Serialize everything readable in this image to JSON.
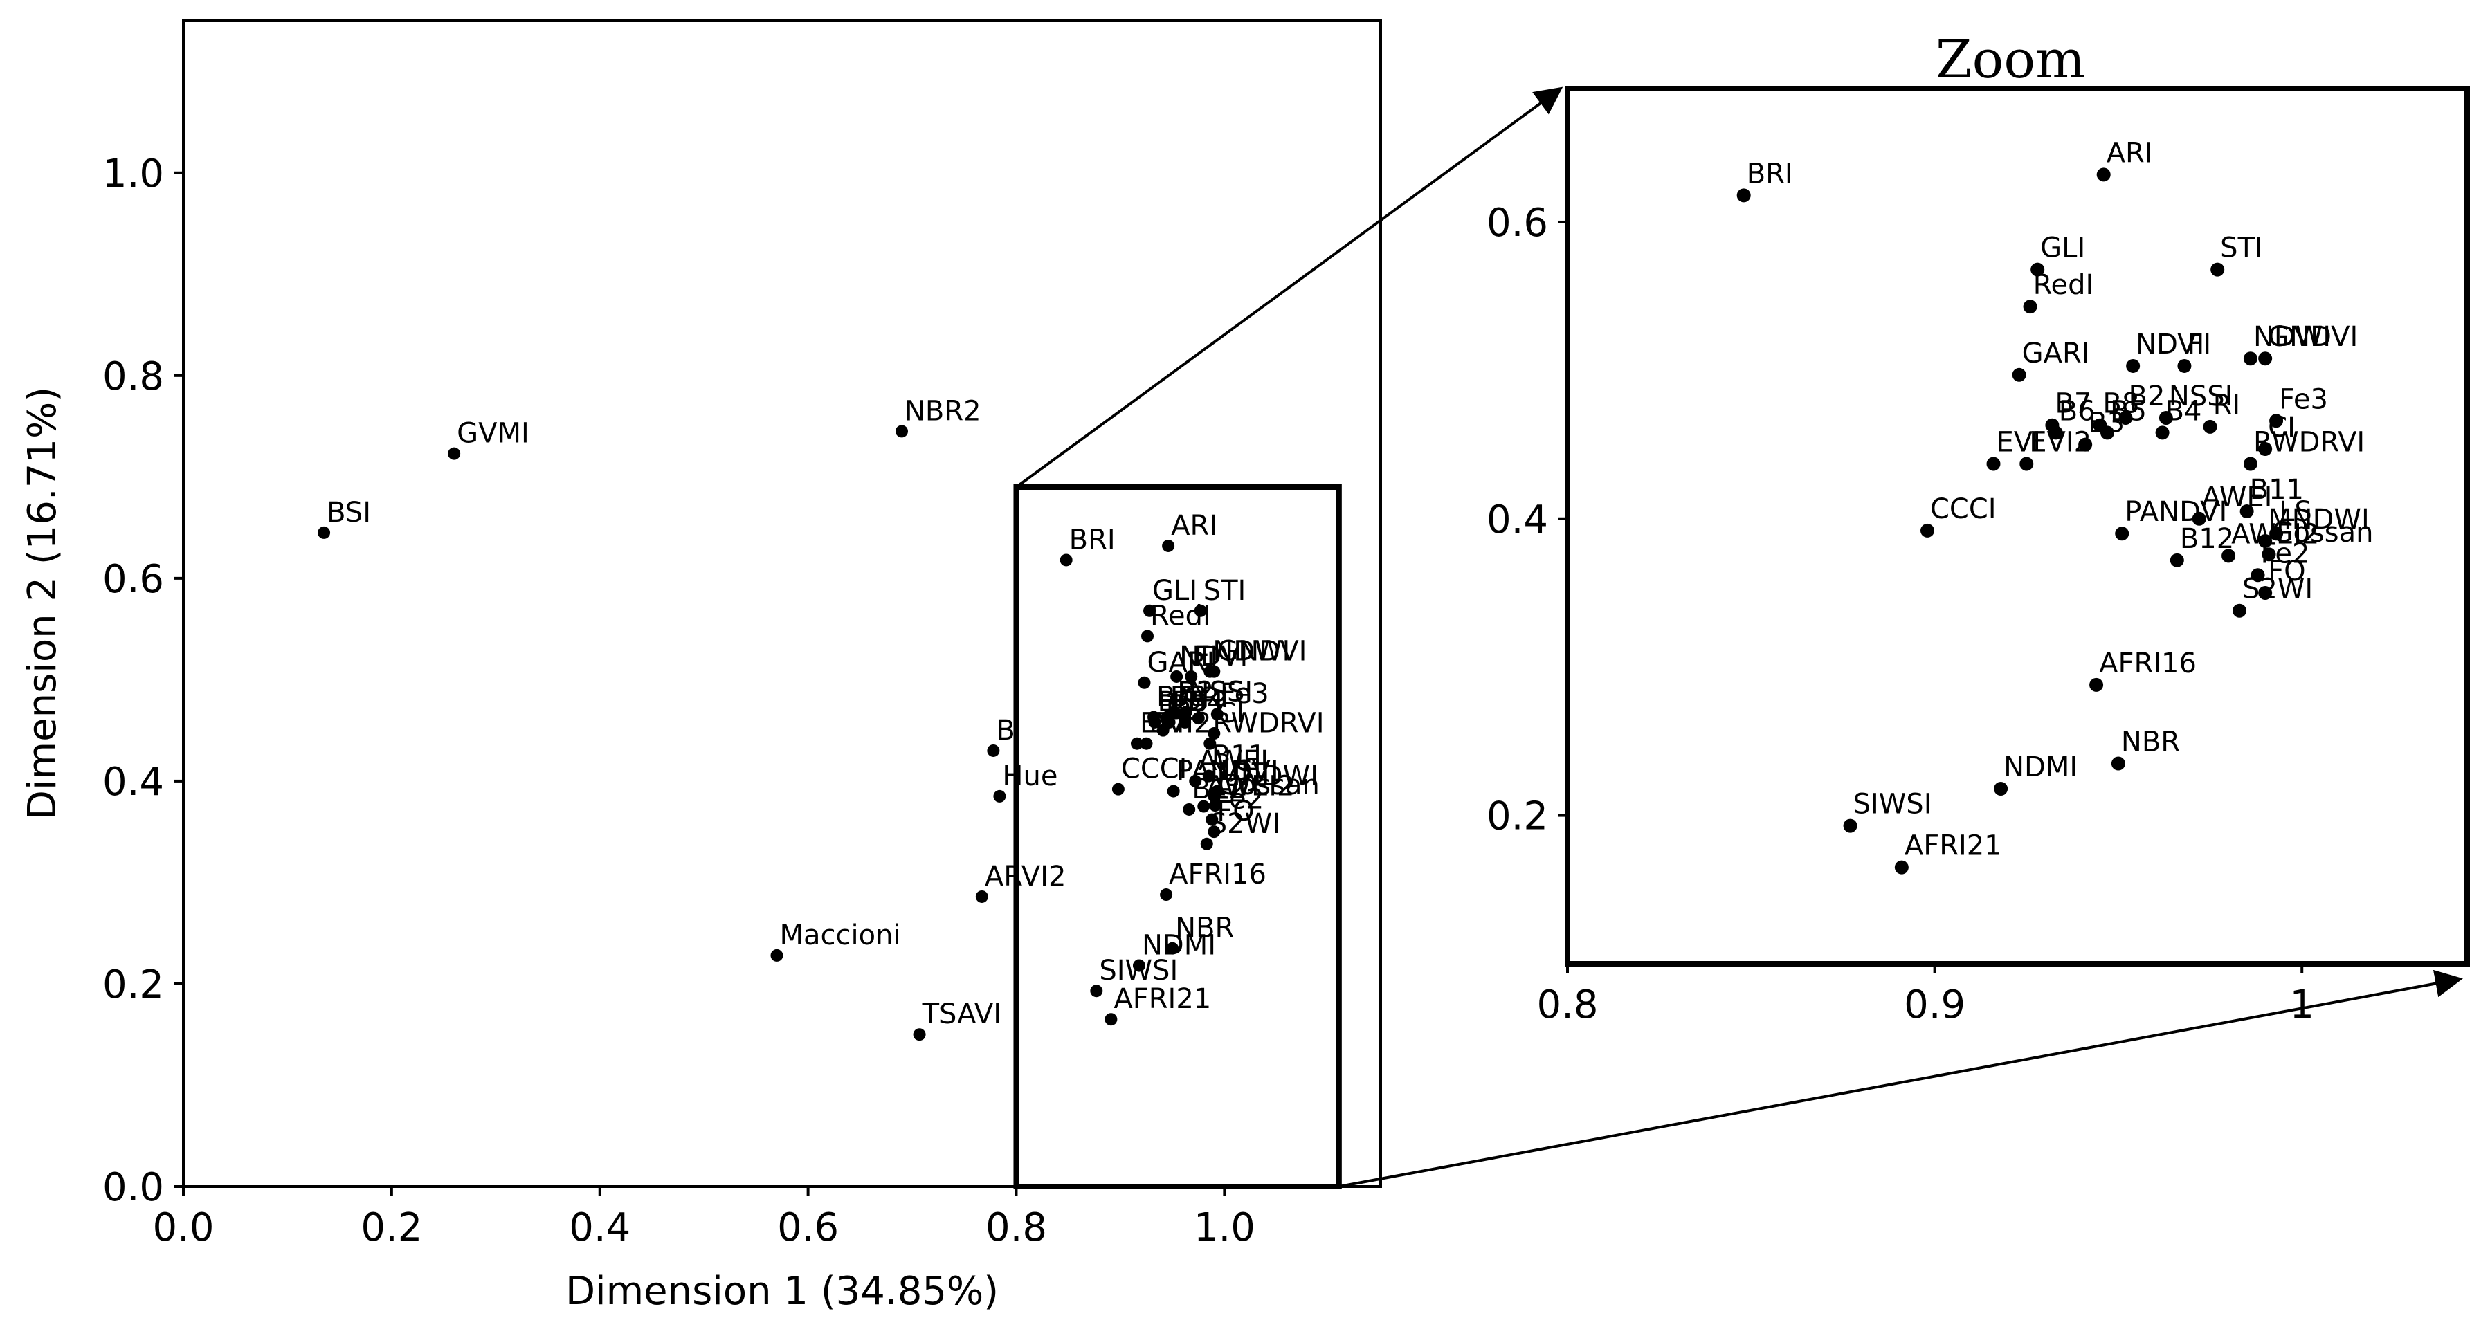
{
  "zoom_title": "Zoom",
  "chart_data": [
    {
      "type": "scatter",
      "title": "",
      "xlabel": "Dimension 1 (34.85%)",
      "ylabel": "Dimension 2 (16.71%)",
      "xlim": [
        0.0,
        1.15
      ],
      "ylim": [
        0.0,
        1.15
      ],
      "xticks": [
        0.0,
        0.2,
        0.4,
        0.6,
        0.8,
        1.0
      ],
      "yticks": [
        0.0,
        0.2,
        0.4,
        0.6,
        0.8,
        1.0
      ],
      "xtick_labels": [
        "0.0",
        "0.2",
        "0.4",
        "0.6",
        "0.8",
        "1.0"
      ],
      "ytick_labels": [
        "0.0",
        "0.2",
        "0.4",
        "0.6",
        "0.8",
        "1.0"
      ],
      "grid": false,
      "point_color": "#000000",
      "zoom_region": {
        "x": [
          0.8,
          1.11
        ],
        "y": [
          0.0,
          0.69
        ]
      },
      "points": [
        {
          "label": "BSI",
          "x": 0.135,
          "y": 0.645
        },
        {
          "label": "GVMI",
          "x": 0.26,
          "y": 0.723
        },
        {
          "label": "NBR2",
          "x": 0.69,
          "y": 0.745
        },
        {
          "label": "Maccioni",
          "x": 0.57,
          "y": 0.228
        },
        {
          "label": "TSAVI",
          "x": 0.707,
          "y": 0.15
        },
        {
          "label": "ARVI2",
          "x": 0.767,
          "y": 0.286
        },
        {
          "label": "B",
          "x": 0.778,
          "y": 0.43
        },
        {
          "label": "Hue",
          "x": 0.784,
          "y": 0.385
        },
        {
          "label": "BRI",
          "x": 0.848,
          "y": 0.618
        },
        {
          "label": "ARI",
          "x": 0.946,
          "y": 0.632
        },
        {
          "label": "GLI",
          "x": 0.928,
          "y": 0.568
        },
        {
          "label": "STI",
          "x": 0.977,
          "y": 0.568
        },
        {
          "label": "RedI",
          "x": 0.926,
          "y": 0.543
        },
        {
          "label": "GARI",
          "x": 0.923,
          "y": 0.497
        },
        {
          "label": "NDVI",
          "x": 0.954,
          "y": 0.503
        },
        {
          "label": "FI",
          "x": 0.968,
          "y": 0.503
        },
        {
          "label": "NDWI",
          "x": 0.986,
          "y": 0.508
        },
        {
          "label": "GNDVI",
          "x": 0.99,
          "y": 0.508
        },
        {
          "label": "B7",
          "x": 0.932,
          "y": 0.463
        },
        {
          "label": "B8",
          "x": 0.945,
          "y": 0.463
        },
        {
          "label": "B2",
          "x": 0.952,
          "y": 0.468
        },
        {
          "label": "NSSI",
          "x": 0.963,
          "y": 0.468
        },
        {
          "label": "B6",
          "x": 0.933,
          "y": 0.458
        },
        {
          "label": "B5",
          "x": 0.947,
          "y": 0.458
        },
        {
          "label": "B4",
          "x": 0.962,
          "y": 0.458
        },
        {
          "label": "RI",
          "x": 0.975,
          "y": 0.462
        },
        {
          "label": "Fe3",
          "x": 0.993,
          "y": 0.466
        },
        {
          "label": "B3",
          "x": 0.941,
          "y": 0.45
        },
        {
          "label": "CI",
          "x": 0.99,
          "y": 0.447
        },
        {
          "label": "EVI",
          "x": 0.916,
          "y": 0.437
        },
        {
          "label": "EVI2",
          "x": 0.925,
          "y": 0.437
        },
        {
          "label": "RWDRVI",
          "x": 0.986,
          "y": 0.437
        },
        {
          "label": "B11",
          "x": 0.985,
          "y": 0.405
        },
        {
          "label": "AWEI",
          "x": 0.972,
          "y": 0.4
        },
        {
          "label": "PANDVI",
          "x": 0.951,
          "y": 0.39
        },
        {
          "label": "CCCI",
          "x": 0.898,
          "y": 0.392
        },
        {
          "label": "B12",
          "x": 0.966,
          "y": 0.372
        },
        {
          "label": "AWEI2",
          "x": 0.98,
          "y": 0.375
        },
        {
          "label": "LS",
          "x": 0.993,
          "y": 0.39
        },
        {
          "label": "MNDWI",
          "x": 0.99,
          "y": 0.385
        },
        {
          "label": "Gossan",
          "x": 0.991,
          "y": 0.376
        },
        {
          "label": "Fe2",
          "x": 0.988,
          "y": 0.362
        },
        {
          "label": "FO",
          "x": 0.99,
          "y": 0.35
        },
        {
          "label": "S2WI",
          "x": 0.983,
          "y": 0.338
        },
        {
          "label": "AFRI16",
          "x": 0.944,
          "y": 0.288
        },
        {
          "label": "NBR",
          "x": 0.95,
          "y": 0.235
        },
        {
          "label": "NDMI",
          "x": 0.918,
          "y": 0.218
        },
        {
          "label": "SIWSI",
          "x": 0.877,
          "y": 0.193
        },
        {
          "label": "AFRI21",
          "x": 0.891,
          "y": 0.165
        }
      ]
    },
    {
      "type": "scatter",
      "title": "Zoom",
      "xlabel": "",
      "ylabel": "",
      "xlim": [
        0.8,
        1.045
      ],
      "ylim": [
        0.1,
        0.69
      ],
      "xticks": [
        0.8,
        0.9,
        1.0
      ],
      "yticks": [
        0.2,
        0.4,
        0.6
      ],
      "xtick_labels": [
        "0.8",
        "0.9",
        "1"
      ],
      "ytick_labels": [
        "0.2",
        "0.4",
        "0.6"
      ],
      "grid": false,
      "point_color": "#000000",
      "points": [
        {
          "label": "BRI",
          "x": 0.848,
          "y": 0.618
        },
        {
          "label": "ARI",
          "x": 0.946,
          "y": 0.632
        },
        {
          "label": "GLI",
          "x": 0.928,
          "y": 0.568
        },
        {
          "label": "STI",
          "x": 0.977,
          "y": 0.568
        },
        {
          "label": "RedI",
          "x": 0.926,
          "y": 0.543
        },
        {
          "label": "GARI",
          "x": 0.923,
          "y": 0.497
        },
        {
          "label": "NDVI",
          "x": 0.954,
          "y": 0.503
        },
        {
          "label": "FI",
          "x": 0.968,
          "y": 0.503
        },
        {
          "label": "NDWI",
          "x": 0.986,
          "y": 0.508
        },
        {
          "label": "GNDVI",
          "x": 0.99,
          "y": 0.508
        },
        {
          "label": "B7",
          "x": 0.932,
          "y": 0.463
        },
        {
          "label": "B8",
          "x": 0.945,
          "y": 0.463
        },
        {
          "label": "B2",
          "x": 0.952,
          "y": 0.468
        },
        {
          "label": "NSSI",
          "x": 0.963,
          "y": 0.468
        },
        {
          "label": "B6",
          "x": 0.933,
          "y": 0.458
        },
        {
          "label": "B5",
          "x": 0.947,
          "y": 0.458
        },
        {
          "label": "B4",
          "x": 0.962,
          "y": 0.458
        },
        {
          "label": "RI",
          "x": 0.975,
          "y": 0.462
        },
        {
          "label": "Fe3",
          "x": 0.993,
          "y": 0.466
        },
        {
          "label": "B3",
          "x": 0.941,
          "y": 0.45
        },
        {
          "label": "CI",
          "x": 0.99,
          "y": 0.447
        },
        {
          "label": "EVI",
          "x": 0.916,
          "y": 0.437
        },
        {
          "label": "EVI2",
          "x": 0.925,
          "y": 0.437
        },
        {
          "label": "RWDRVI",
          "x": 0.986,
          "y": 0.437
        },
        {
          "label": "B11",
          "x": 0.985,
          "y": 0.405
        },
        {
          "label": "AWEI",
          "x": 0.972,
          "y": 0.4
        },
        {
          "label": "PANDVI",
          "x": 0.951,
          "y": 0.39
        },
        {
          "label": "CCCI",
          "x": 0.898,
          "y": 0.392
        },
        {
          "label": "B12",
          "x": 0.966,
          "y": 0.372
        },
        {
          "label": "AWEI2",
          "x": 0.98,
          "y": 0.375
        },
        {
          "label": "LS",
          "x": 0.993,
          "y": 0.39
        },
        {
          "label": "MNDWI",
          "x": 0.99,
          "y": 0.385
        },
        {
          "label": "Gossan",
          "x": 0.991,
          "y": 0.376
        },
        {
          "label": "Fe2",
          "x": 0.988,
          "y": 0.362
        },
        {
          "label": "FO",
          "x": 0.99,
          "y": 0.35
        },
        {
          "label": "S2WI",
          "x": 0.983,
          "y": 0.338
        },
        {
          "label": "AFRI16",
          "x": 0.944,
          "y": 0.288
        },
        {
          "label": "NBR",
          "x": 0.95,
          "y": 0.235
        },
        {
          "label": "NDMI",
          "x": 0.918,
          "y": 0.218
        },
        {
          "label": "SIWSI",
          "x": 0.877,
          "y": 0.193
        },
        {
          "label": "AFRI21",
          "x": 0.891,
          "y": 0.165
        }
      ]
    }
  ]
}
